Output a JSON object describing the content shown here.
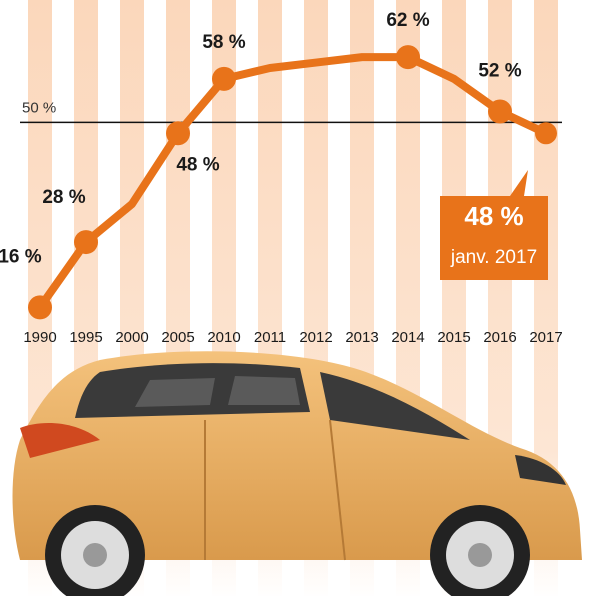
{
  "chart_data": {
    "type": "line",
    "categories": [
      "1990",
      "1995",
      "2000",
      "2005",
      "2010",
      "2011",
      "2012",
      "2013",
      "2014",
      "2015",
      "2016",
      "2017"
    ],
    "values": [
      16,
      28,
      35,
      48,
      58,
      60,
      61,
      62,
      62,
      58,
      52,
      48
    ],
    "value_labels": [
      "16 %",
      "28 %",
      null,
      "48 %",
      "58 %",
      null,
      null,
      null,
      "62 %",
      null,
      "52 %",
      null
    ],
    "color": "#e8731a",
    "ylim": [
      10,
      72.5
    ],
    "reference_line": {
      "value": 50,
      "label": "50 %"
    },
    "callout": {
      "value_label": "48 %",
      "date": "janv. 2017"
    }
  }
}
